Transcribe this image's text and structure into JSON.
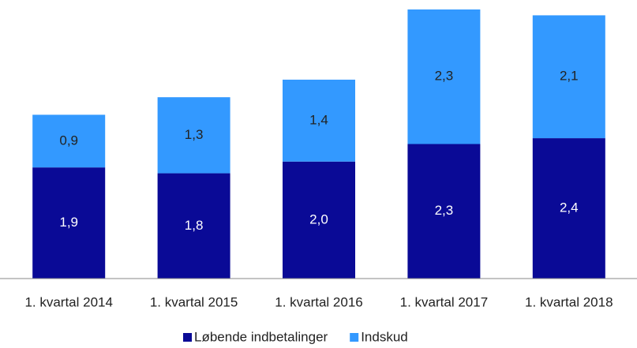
{
  "chart_data": {
    "type": "stacked_bar",
    "categories": [
      "1. kvartal 2014",
      "1. kvartal 2015",
      "1. kvartal 2016",
      "1. kvartal 2017",
      "1. kvartal 2018"
    ],
    "series": [
      {
        "name": "Løbende indbetalinger",
        "color": "#0a0a96",
        "values": [
          1.9,
          1.8,
          2.0,
          2.3,
          2.4
        ],
        "value_labels": [
          "1,9",
          "1,8",
          "2,0",
          "2,3",
          "2,4"
        ]
      },
      {
        "name": "Indskud",
        "color": "#3399ff",
        "values": [
          0.9,
          1.3,
          1.4,
          2.3,
          2.1
        ],
        "value_labels": [
          "0,9",
          "1,3",
          "1,4",
          "2,3",
          "2,1"
        ]
      }
    ],
    "legend": "bottom"
  }
}
